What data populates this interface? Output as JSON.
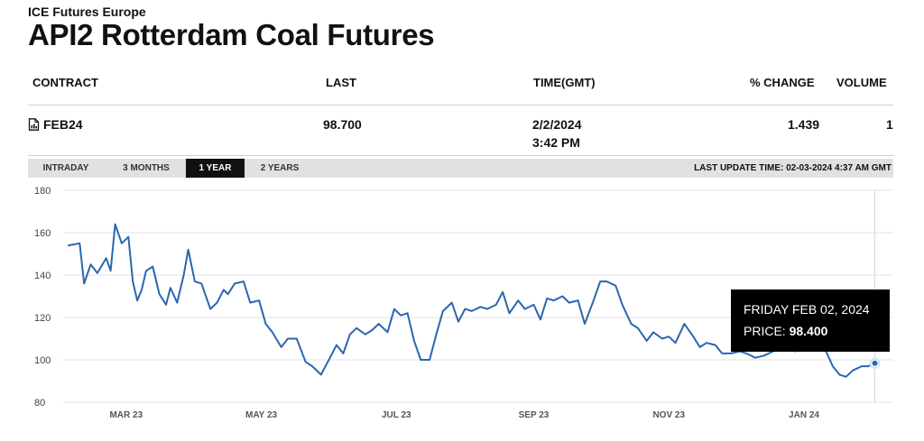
{
  "header": {
    "exchange": "ICE Futures Europe",
    "title": "API2 Rotterdam Coal Futures"
  },
  "table": {
    "columns": [
      "CONTRACT",
      "LAST",
      "TIME(GMT)",
      "% CHANGE",
      "VOLUME"
    ],
    "row": {
      "contract": "FEB24",
      "last": "98.700",
      "time_date": "2/2/2024",
      "time_clock": "3:42 PM",
      "change": "1.439",
      "volume": "1"
    }
  },
  "tabs": [
    "INTRADAY",
    "3 MONTHS",
    "1 YEAR",
    "2 YEARS"
  ],
  "active_tab": "1 YEAR",
  "last_update": "LAST UPDATE TIME: 02-03-2024 4:37 AM GMT",
  "tooltip": {
    "date": "FRIDAY FEB 02, 2024",
    "price_label": "PRICE:",
    "price_value": "98.400"
  },
  "colors": {
    "line": "#2b66b0",
    "tooltip_bg": "#000000",
    "tab_active": "#111111"
  },
  "chart_data": {
    "type": "line",
    "title": "",
    "xlabel": "",
    "ylabel": "",
    "ylim": [
      80,
      180
    ],
    "yticks": [
      80,
      100,
      120,
      140,
      160,
      180
    ],
    "xlim": [
      "2023-02-03",
      "2024-02-03"
    ],
    "xticks": [
      {
        "date": "2023-03-01",
        "label": "MAR 23"
      },
      {
        "date": "2023-05-01",
        "label": "MAY 23"
      },
      {
        "date": "2023-07-01",
        "label": "JUL 23"
      },
      {
        "date": "2023-09-01",
        "label": "SEP 23"
      },
      {
        "date": "2023-11-01",
        "label": "NOV 23"
      },
      {
        "date": "2024-01-01",
        "label": "JAN 24"
      }
    ],
    "grid": true,
    "series": [
      {
        "x": [
          "2023-02-03",
          "2023-02-08",
          "2023-02-10",
          "2023-02-13",
          "2023-02-16",
          "2023-02-20",
          "2023-02-22",
          "2023-02-24",
          "2023-02-27",
          "2023-03-02",
          "2023-03-04",
          "2023-03-06",
          "2023-03-08",
          "2023-03-10",
          "2023-03-13",
          "2023-03-16",
          "2023-03-19",
          "2023-03-21",
          "2023-03-24",
          "2023-03-27",
          "2023-03-29",
          "2023-04-01",
          "2023-04-04",
          "2023-04-08",
          "2023-04-11",
          "2023-04-14",
          "2023-04-16",
          "2023-04-19",
          "2023-04-23",
          "2023-04-26",
          "2023-04-30",
          "2023-05-03",
          "2023-05-06",
          "2023-05-10",
          "2023-05-13",
          "2023-05-17",
          "2023-05-21",
          "2023-05-24",
          "2023-05-28",
          "2023-06-01",
          "2023-06-04",
          "2023-06-07",
          "2023-06-10",
          "2023-06-13",
          "2023-06-17",
          "2023-06-20",
          "2023-06-23",
          "2023-06-27",
          "2023-06-30",
          "2023-07-03",
          "2023-07-06",
          "2023-07-09",
          "2023-07-12",
          "2023-07-16",
          "2023-07-19",
          "2023-07-22",
          "2023-07-26",
          "2023-07-29",
          "2023-08-01",
          "2023-08-04",
          "2023-08-08",
          "2023-08-11",
          "2023-08-15",
          "2023-08-18",
          "2023-08-21",
          "2023-08-25",
          "2023-08-28",
          "2023-09-01",
          "2023-09-04",
          "2023-09-07",
          "2023-09-10",
          "2023-09-14",
          "2023-09-17",
          "2023-09-21",
          "2023-09-24",
          "2023-09-28",
          "2023-10-01",
          "2023-10-04",
          "2023-10-08",
          "2023-10-11",
          "2023-10-15",
          "2023-10-18",
          "2023-10-22",
          "2023-10-25",
          "2023-10-29",
          "2023-11-01",
          "2023-11-04",
          "2023-11-08",
          "2023-11-12",
          "2023-11-15",
          "2023-11-18",
          "2023-11-22",
          "2023-11-25",
          "2023-11-29",
          "2023-12-03",
          "2023-12-06",
          "2023-12-10",
          "2023-12-14",
          "2023-12-18",
          "2023-12-21",
          "2023-12-25",
          "2023-12-28",
          "2024-01-01",
          "2024-01-04",
          "2024-01-08",
          "2024-01-11",
          "2024-01-14",
          "2024-01-17",
          "2024-01-20",
          "2024-01-23",
          "2024-01-27",
          "2024-01-30",
          "2024-02-02"
        ],
        "y": [
          154,
          155,
          136,
          145,
          141,
          148,
          142,
          164,
          155,
          158,
          137,
          128,
          133,
          142,
          144,
          131,
          126,
          134,
          127,
          140,
          152,
          137,
          136,
          124,
          127,
          133,
          131,
          136,
          137,
          127,
          128,
          117,
          113,
          106,
          110,
          110,
          99,
          97,
          93,
          101,
          107,
          103,
          112,
          115,
          112,
          114,
          117,
          113,
          124,
          121,
          122,
          109,
          100,
          100,
          112,
          123,
          127,
          118,
          124,
          123,
          125,
          124,
          126,
          132,
          122,
          128,
          124,
          126,
          119,
          129,
          128,
          130,
          127,
          128,
          117,
          128,
          137,
          137,
          135,
          126,
          117,
          115,
          109,
          113,
          110,
          111,
          108,
          117,
          111,
          106,
          108,
          107,
          103,
          103,
          104,
          103,
          101,
          102,
          104,
          106,
          106,
          104,
          108,
          108,
          105,
          104,
          97,
          93,
          92,
          95,
          97,
          97,
          98.4
        ]
      }
    ]
  }
}
